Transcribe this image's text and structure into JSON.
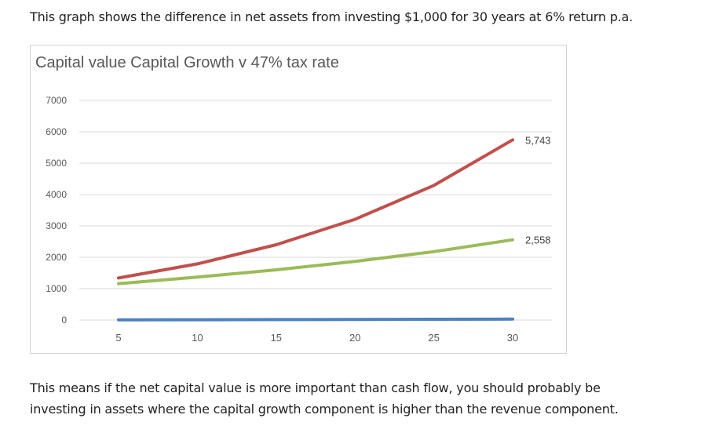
{
  "intro_text": "This graph shows the difference in net assets from investing $1,000 for 30 years at 6% return p.a.",
  "outro_lines": [
    "This means if the net capital value is more important than cash flow, you should probably be",
    "investing in assets where the capital growth component is higher than the revenue component."
  ],
  "chart_data": {
    "type": "line",
    "title": "Capital value Capital Growth v 47% tax rate",
    "xlabel": "",
    "ylabel": "",
    "x": [
      5,
      10,
      15,
      20,
      25,
      30
    ],
    "xlim": [
      5,
      30
    ],
    "ylim": [
      0,
      7000
    ],
    "y_ticks": [
      0,
      1000,
      2000,
      3000,
      4000,
      5000,
      6000,
      7000
    ],
    "x_ticks": [
      5,
      10,
      15,
      20,
      25,
      30
    ],
    "grid": true,
    "legend": "none",
    "series": [
      {
        "color": "#c0504d",
        "values": [
          1340,
          1790,
          2400,
          3210,
          4290,
          5743
        ],
        "end_label": "5,743"
      },
      {
        "color": "#9bbb59",
        "values": [
          1160,
          1370,
          1600,
          1870,
          2180,
          2558
        ],
        "end_label": "2,558"
      },
      {
        "color": "#4f81bd",
        "values": [
          5,
          10,
          15,
          20,
          25,
          30
        ]
      }
    ]
  }
}
